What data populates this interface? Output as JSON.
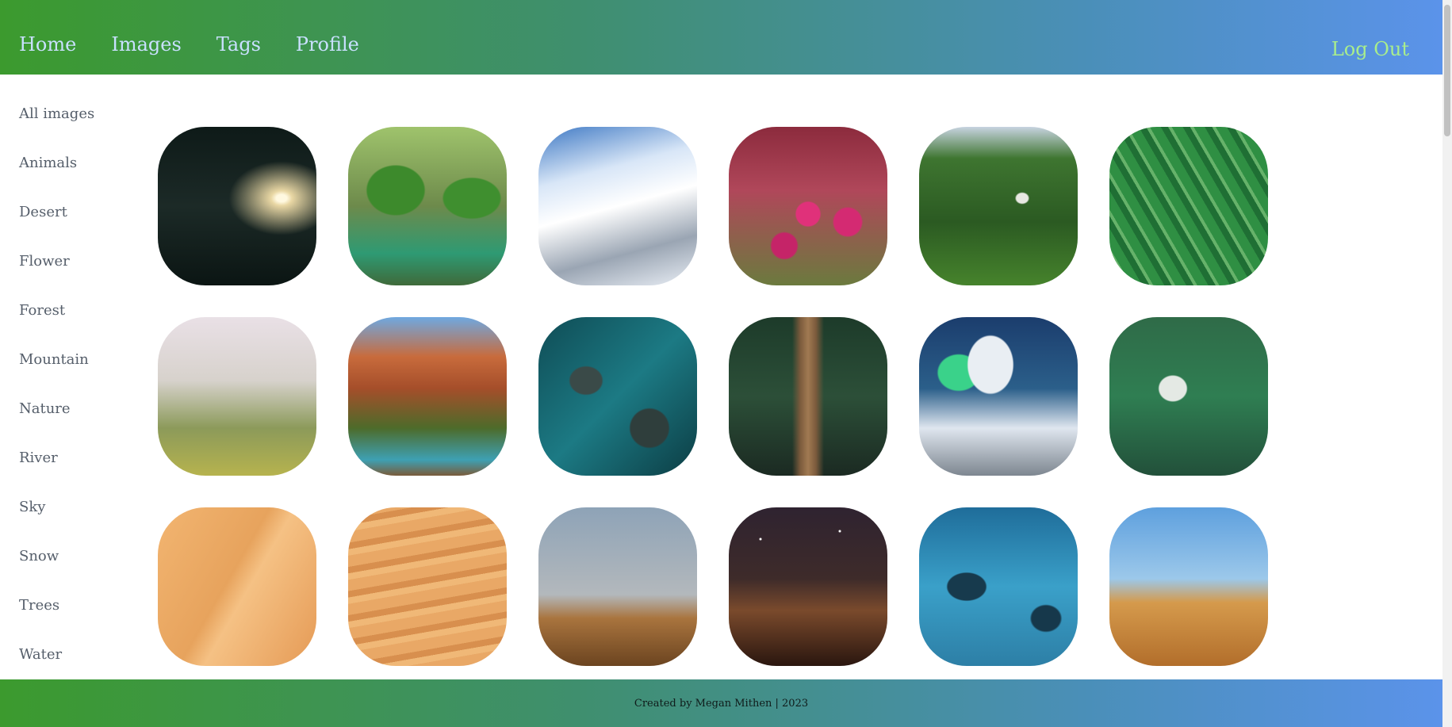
{
  "header": {
    "nav": [
      "Home",
      "Images",
      "Tags",
      "Profile"
    ],
    "logout_label": "Log Out"
  },
  "sidebar": {
    "categories": [
      "All images",
      "Animals",
      "Desert",
      "Flower",
      "Forest",
      "Mountain",
      "Nature",
      "River",
      "Sky",
      "Snow",
      "Trees",
      "Water"
    ]
  },
  "gallery": {
    "tiles": [
      "water",
      "parrots",
      "mountain",
      "flower",
      "forest",
      "leaf",
      "palms",
      "canyon",
      "ocean",
      "bridge",
      "aurora",
      "trees",
      "dune1",
      "dune2",
      "dune3",
      "dune4",
      "dolphins",
      "dune5"
    ]
  },
  "footer": {
    "text": "Created by Megan Mithen | 2023"
  }
}
